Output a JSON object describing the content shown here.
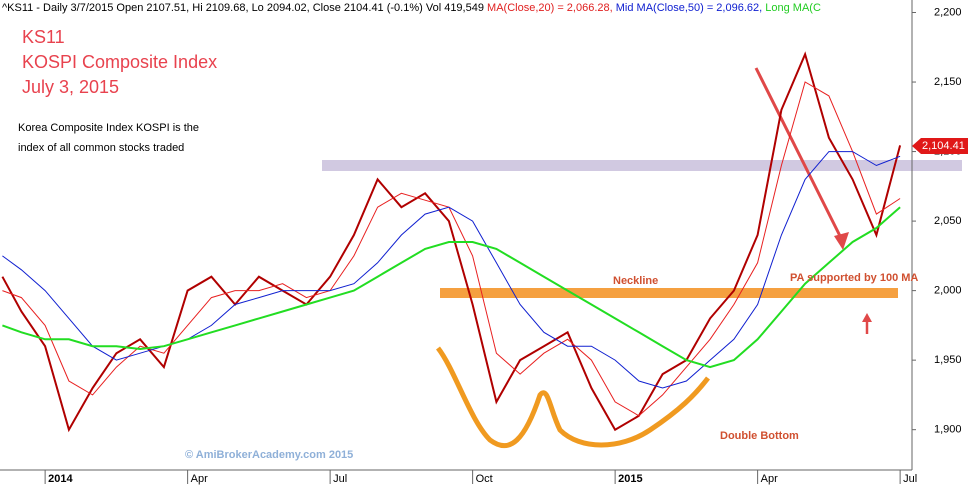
{
  "chart_data": {
    "type": "line",
    "header": {
      "info": "^KS11 - Daily 3/7/2015 Open 2107.51, Hi 2109.68, Lo 2094.02, Close 2104.41 (-0.1%) Vol 419,549",
      "ma20": "MA(Close,20) = 2,066.28,",
      "ma50": "Mid MA(Close,50) = 2,096.62,",
      "ma100": "Long MA(C"
    },
    "title": "KS11",
    "subtitle": "KOSPI Composite Index",
    "date": "July 3, 2015",
    "description": [
      "Korea Composite Index KOSPI is the",
      "index of all common stocks traded"
    ],
    "annotations": {
      "neckline": "Neckline",
      "support": "PA supported by 100 MA",
      "double_bottom": "Double Bottom",
      "watermark": "© AmiBrokerAcademy.com 2015"
    },
    "price_tag": "2,104.41",
    "x": [
      -0.9,
      -0.5,
      0,
      0.5,
      1,
      1.5,
      2,
      2.5,
      3,
      3.5,
      4,
      4.5,
      5,
      5.5,
      6,
      6.5,
      7,
      7.5,
      8,
      8.5,
      9,
      9.5,
      10,
      10.5,
      11,
      11.5,
      12,
      12.5,
      13,
      13.5,
      14,
      14.5,
      15,
      15.5,
      16,
      16.5,
      17,
      17.5,
      18
    ],
    "series": [
      {
        "color": "#b00000",
        "values": [
          2010,
          1985,
          1960,
          1900,
          1930,
          1955,
          1965,
          1945,
          2000,
          2010,
          1990,
          2010,
          2000,
          1990,
          2010,
          2040,
          2080,
          2060,
          2070,
          2050,
          1990,
          1920,
          1950,
          1960,
          1970,
          1930,
          1900,
          1910,
          1940,
          1950,
          1980,
          2000,
          2040,
          2130,
          2170,
          2110,
          2080,
          2040,
          2104.41
        ]
      },
      {
        "color": "#e82020",
        "values": [
          2000,
          1995,
          1975,
          1935,
          1925,
          1945,
          1960,
          1955,
          1975,
          1995,
          2000,
          2000,
          2005,
          1995,
          2000,
          2025,
          2060,
          2070,
          2065,
          2060,
          2025,
          1955,
          1940,
          1955,
          1965,
          1950,
          1920,
          1910,
          1925,
          1945,
          1965,
          1990,
          2020,
          2090,
          2150,
          2140,
          2100,
          2055,
          2066.28
        ]
      },
      {
        "color": "#1020d0",
        "values": [
          2025,
          2015,
          2000,
          1980,
          1960,
          1950,
          1955,
          1960,
          1965,
          1975,
          1990,
          1995,
          2000,
          2000,
          2000,
          2005,
          2020,
          2040,
          2055,
          2060,
          2050,
          2020,
          1990,
          1970,
          1960,
          1960,
          1950,
          1935,
          1930,
          1935,
          1950,
          1965,
          1990,
          2040,
          2080,
          2100,
          2100,
          2090,
          2096.62
        ]
      },
      {
        "color": "#22dd22",
        "values": [
          1975,
          1970,
          1965,
          1965,
          1960,
          1960,
          1958,
          1960,
          1965,
          1970,
          1975,
          1980,
          1985,
          1990,
          1995,
          2000,
          2010,
          2020,
          2030,
          2035,
          2035,
          2030,
          2020,
          2010,
          2000,
          1990,
          1980,
          1970,
          1960,
          1950,
          1945,
          1950,
          1965,
          1985,
          2005,
          2020,
          2035,
          2045,
          2060
        ]
      }
    ],
    "xlim": [
      -0.95,
      18.25
    ],
    "xticks": [
      {
        "value": 0,
        "label": "2014"
      },
      {
        "value": 3,
        "label": "Apr"
      },
      {
        "value": 6,
        "label": "Jul"
      },
      {
        "value": 9,
        "label": "Oct"
      },
      {
        "value": 12,
        "label": "2015"
      },
      {
        "value": 15,
        "label": "Apr"
      },
      {
        "value": 18,
        "label": "Jul"
      }
    ],
    "ylim": [
      1871,
      2209
    ],
    "yticks": [
      {
        "value": 1900,
        "label": "1,900"
      },
      {
        "value": 1950,
        "label": "1,950"
      },
      {
        "value": 2000,
        "label": "2,000"
      },
      {
        "value": 2050,
        "label": "2,050"
      },
      {
        "value": 2100,
        "label": "2,100"
      },
      {
        "value": 2150,
        "label": "2,150"
      },
      {
        "value": 2200,
        "label": "2,200"
      }
    ]
  }
}
